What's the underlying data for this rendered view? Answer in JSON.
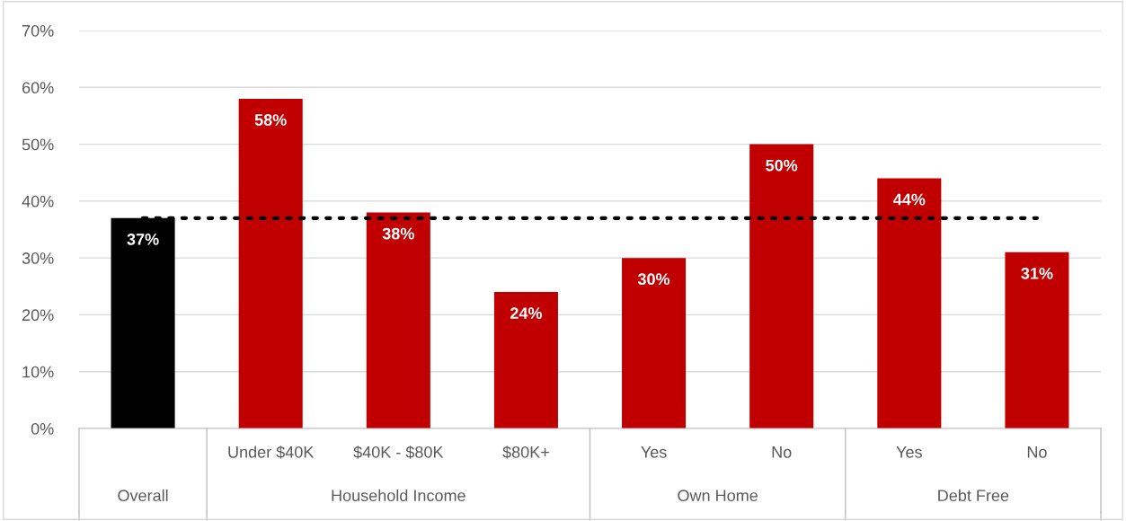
{
  "chart_data": {
    "type": "bar",
    "categories": [
      null,
      "Under $40K",
      "$40K - $80K",
      "$80K+",
      "Yes",
      "No",
      "Yes",
      "No"
    ],
    "values": [
      37,
      58,
      38,
      24,
      30,
      50,
      44,
      31
    ],
    "colors": [
      "#000000",
      "#c00000",
      "#c00000",
      "#c00000",
      "#c00000",
      "#c00000",
      "#c00000",
      "#c00000"
    ],
    "value_labels": [
      "37%",
      "58%",
      "38%",
      "24%",
      "30%",
      "50%",
      "44%",
      "31%"
    ],
    "ylim": [
      0,
      70
    ],
    "yticks": [
      {
        "value": 0,
        "label": "0%"
      },
      {
        "value": 10,
        "label": "10%"
      },
      {
        "value": 20,
        "label": "20%"
      },
      {
        "value": 30,
        "label": "30%"
      },
      {
        "value": 40,
        "label": "40%"
      },
      {
        "value": 50,
        "label": "50%"
      },
      {
        "value": 60,
        "label": "60%"
      },
      {
        "value": 70,
        "label": "70%"
      }
    ],
    "grid": "y",
    "ref_lines": [
      {
        "axis": "y",
        "value": 37,
        "color": "#000000",
        "line_style": "dotted"
      }
    ],
    "annotations": [
      "Overall",
      "Household Income",
      "Own Home",
      "Debt Free"
    ]
  }
}
